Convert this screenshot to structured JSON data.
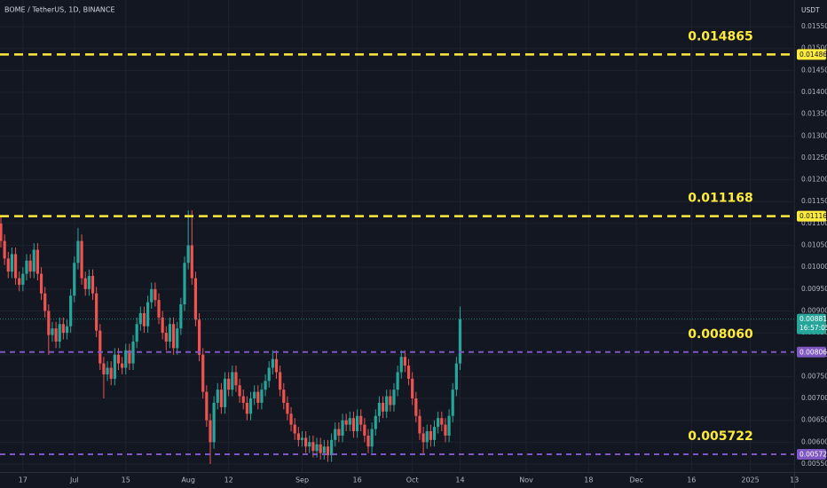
{
  "chart_data": {
    "type": "candlestick",
    "title": "BOME / TetherUS, 1D, BINANCE",
    "y_unit": "USDT",
    "up_color": "#26a69a",
    "down_color": "#ef5350",
    "ylim": [
      0.005317,
      0.01611
    ],
    "yticks": [
      {
        "value": 0.0055,
        "label": "0.005500"
      },
      {
        "value": 0.006,
        "label": "0.006000"
      },
      {
        "value": 0.0065,
        "label": "0.006500"
      },
      {
        "value": 0.007,
        "label": "0.007000"
      },
      {
        "value": 0.0075,
        "label": "0.007500"
      },
      {
        "value": 0.008,
        "label": "0.008000"
      },
      {
        "value": 0.0085,
        "label": "0.008500"
      },
      {
        "value": 0.009,
        "label": "0.009000"
      },
      {
        "value": 0.0095,
        "label": "0.009500"
      },
      {
        "value": 0.01,
        "label": "0.010000"
      },
      {
        "value": 0.0105,
        "label": "0.010500"
      },
      {
        "value": 0.011,
        "label": "0.011000"
      },
      {
        "value": 0.0115,
        "label": "0.011500"
      },
      {
        "value": 0.012,
        "label": "0.012000"
      },
      {
        "value": 0.0125,
        "label": "0.012500"
      },
      {
        "value": 0.013,
        "label": "0.013000"
      },
      {
        "value": 0.0135,
        "label": "0.013500"
      },
      {
        "value": 0.014,
        "label": "0.014000"
      },
      {
        "value": 0.0145,
        "label": "0.014500"
      },
      {
        "value": 0.015,
        "label": "0.015000"
      },
      {
        "value": 0.0155,
        "label": "0.015500"
      }
    ],
    "grid": true,
    "categories": [
      null,
      null,
      null,
      null,
      null,
      null,
      "17",
      null,
      null,
      null,
      null,
      null,
      null,
      null,
      null,
      null,
      null,
      null,
      null,
      null,
      "Jul",
      null,
      null,
      null,
      null,
      null,
      null,
      null,
      null,
      null,
      null,
      null,
      null,
      null,
      "15",
      null,
      null,
      null,
      null,
      null,
      null,
      null,
      null,
      null,
      null,
      null,
      null,
      null,
      null,
      null,
      null,
      "Aug",
      null,
      null,
      null,
      null,
      null,
      null,
      null,
      null,
      null,
      null,
      "12",
      null,
      null,
      null,
      null,
      null,
      null,
      null,
      null,
      null,
      null,
      null,
      null,
      null,
      null,
      null,
      null,
      null,
      null,
      null,
      "Sep",
      null,
      null,
      null,
      null,
      null,
      null,
      null,
      null,
      null,
      null,
      null,
      null,
      null,
      null,
      "16",
      null,
      null,
      null,
      null,
      null,
      null,
      null,
      null,
      null,
      null,
      null,
      null,
      null,
      null,
      "Oct",
      null,
      null,
      null,
      null,
      null,
      null,
      null,
      null,
      null,
      null,
      null,
      null,
      "14"
    ],
    "future_categories": [
      "Nov",
      "18",
      "Dec",
      "16",
      "2025",
      "13"
    ],
    "series": [
      {
        "name": "BOME",
        "ohlc": [
          [
            0.011,
            0.01115,
            0.01045,
            0.0106
          ],
          [
            0.0106,
            0.01075,
            0.01005,
            0.0102
          ],
          [
            0.0102,
            0.01035,
            0.00975,
            0.0099
          ],
          [
            0.0099,
            0.01045,
            0.00975,
            0.0103
          ],
          [
            0.0103,
            0.01045,
            0.0096,
            0.00975
          ],
          [
            0.00975,
            0.0099,
            0.00945,
            0.0096
          ],
          [
            0.0096,
            0.01,
            0.00945,
            0.00985
          ],
          [
            0.00985,
            0.0103,
            0.0097,
            0.01015
          ],
          [
            0.01015,
            0.0103,
            0.00975,
            0.0099
          ],
          [
            0.0099,
            0.01055,
            0.00975,
            0.0104
          ],
          [
            0.0104,
            0.01055,
            0.0097,
            0.00985
          ],
          [
            0.00985,
            0.01,
            0.00925,
            0.0094
          ],
          [
            0.0094,
            0.00955,
            0.00885,
            0.009
          ],
          [
            0.009,
            0.00915,
            0.008,
            0.00845
          ],
          [
            0.00845,
            0.00875,
            0.0083,
            0.0086
          ],
          [
            0.0086,
            0.00875,
            0.00815,
            0.0083
          ],
          [
            0.0083,
            0.00885,
            0.00815,
            0.0087
          ],
          [
            0.0087,
            0.00885,
            0.00835,
            0.0085
          ],
          [
            0.0085,
            0.0088,
            0.00835,
            0.00865
          ],
          [
            0.00865,
            0.0095,
            0.0085,
            0.00935
          ],
          [
            0.00935,
            0.01025,
            0.0092,
            0.0101
          ],
          [
            0.0101,
            0.0109,
            0.00995,
            0.0106
          ],
          [
            0.0106,
            0.01075,
            0.0096,
            0.00975
          ],
          [
            0.00975,
            0.0099,
            0.00935,
            0.0095
          ],
          [
            0.0095,
            0.00995,
            0.00935,
            0.0098
          ],
          [
            0.0098,
            0.00995,
            0.00925,
            0.0094
          ],
          [
            0.0094,
            0.00955,
            0.0084,
            0.00855
          ],
          [
            0.00855,
            0.0087,
            0.00765,
            0.0078
          ],
          [
            0.0078,
            0.00795,
            0.007,
            0.00755
          ],
          [
            0.00755,
            0.00785,
            0.0074,
            0.0077
          ],
          [
            0.0077,
            0.00785,
            0.0073,
            0.00745
          ],
          [
            0.00745,
            0.00815,
            0.0073,
            0.008
          ],
          [
            0.008,
            0.00815,
            0.00765,
            0.0078
          ],
          [
            0.0078,
            0.00795,
            0.00755,
            0.0077
          ],
          [
            0.0077,
            0.00825,
            0.00755,
            0.0081
          ],
          [
            0.0081,
            0.00825,
            0.00765,
            0.0078
          ],
          [
            0.0078,
            0.00845,
            0.00765,
            0.0083
          ],
          [
            0.0083,
            0.00885,
            0.00815,
            0.0087
          ],
          [
            0.0087,
            0.0091,
            0.00855,
            0.00895
          ],
          [
            0.00895,
            0.0091,
            0.0085,
            0.00865
          ],
          [
            0.00865,
            0.00935,
            0.0085,
            0.0092
          ],
          [
            0.0092,
            0.00965,
            0.00905,
            0.0095
          ],
          [
            0.0095,
            0.00965,
            0.0091,
            0.00925
          ],
          [
            0.00925,
            0.0094,
            0.0087,
            0.00885
          ],
          [
            0.00885,
            0.009,
            0.00835,
            0.0085
          ],
          [
            0.0085,
            0.00865,
            0.0081,
            0.0083
          ],
          [
            0.0083,
            0.00885,
            0.00815,
            0.0087
          ],
          [
            0.0087,
            0.00885,
            0.008,
            0.00815
          ],
          [
            0.00815,
            0.00875,
            0.008,
            0.0086
          ],
          [
            0.0086,
            0.0093,
            0.00845,
            0.00915
          ],
          [
            0.00915,
            0.01025,
            0.009,
            0.0101
          ],
          [
            0.0101,
            0.0113,
            0.00995,
            0.0105
          ],
          [
            0.0105,
            0.0113,
            0.0096,
            0.00975
          ],
          [
            0.00975,
            0.0099,
            0.00865,
            0.0088
          ],
          [
            0.0088,
            0.00895,
            0.00785,
            0.008
          ],
          [
            0.008,
            0.00815,
            0.007,
            0.00715
          ],
          [
            0.00715,
            0.0073,
            0.00635,
            0.0065
          ],
          [
            0.0065,
            0.00665,
            0.0055,
            0.006
          ],
          [
            0.006,
            0.00705,
            0.00585,
            0.0069
          ],
          [
            0.0069,
            0.00735,
            0.00675,
            0.0072
          ],
          [
            0.0072,
            0.00735,
            0.00665,
            0.0068
          ],
          [
            0.0068,
            0.0076,
            0.00665,
            0.00745
          ],
          [
            0.00745,
            0.0076,
            0.00705,
            0.0072
          ],
          [
            0.0072,
            0.00775,
            0.00705,
            0.0076
          ],
          [
            0.0076,
            0.00775,
            0.00715,
            0.0073
          ],
          [
            0.0073,
            0.00745,
            0.0069,
            0.00705
          ],
          [
            0.00705,
            0.0072,
            0.00675,
            0.0069
          ],
          [
            0.0069,
            0.00705,
            0.0065,
            0.00665
          ],
          [
            0.00665,
            0.00715,
            0.0065,
            0.007
          ],
          [
            0.007,
            0.0073,
            0.00685,
            0.00715
          ],
          [
            0.00715,
            0.0073,
            0.00675,
            0.0069
          ],
          [
            0.0069,
            0.00735,
            0.00675,
            0.0072
          ],
          [
            0.0072,
            0.00755,
            0.00705,
            0.0074
          ],
          [
            0.0074,
            0.00785,
            0.00725,
            0.0077
          ],
          [
            0.0077,
            0.0081,
            0.00755,
            0.0079
          ],
          [
            0.0079,
            0.0081,
            0.00745,
            0.0076
          ],
          [
            0.0076,
            0.00775,
            0.00705,
            0.0072
          ],
          [
            0.0072,
            0.00735,
            0.00675,
            0.0069
          ],
          [
            0.0069,
            0.00705,
            0.0065,
            0.00665
          ],
          [
            0.00665,
            0.0068,
            0.00625,
            0.0064
          ],
          [
            0.0064,
            0.00655,
            0.00605,
            0.0062
          ],
          [
            0.0062,
            0.00635,
            0.0059,
            0.00605
          ],
          [
            0.00605,
            0.00625,
            0.0059,
            0.0061
          ],
          [
            0.0061,
            0.00625,
            0.00575,
            0.0059
          ],
          [
            0.0059,
            0.00615,
            0.00575,
            0.006
          ],
          [
            0.006,
            0.00615,
            0.00565,
            0.0058
          ],
          [
            0.0058,
            0.0061,
            0.00565,
            0.00595
          ],
          [
            0.00595,
            0.0061,
            0.0056,
            0.00575
          ],
          [
            0.00575,
            0.00605,
            0.0056,
            0.0059
          ],
          [
            0.0059,
            0.00605,
            0.00555,
            0.0057
          ],
          [
            0.0057,
            0.0062,
            0.00555,
            0.00605
          ],
          [
            0.00605,
            0.00645,
            0.0059,
            0.0063
          ],
          [
            0.0063,
            0.00645,
            0.006,
            0.00615
          ],
          [
            0.00615,
            0.00665,
            0.006,
            0.0065
          ],
          [
            0.0065,
            0.00665,
            0.00625,
            0.0064
          ],
          [
            0.0064,
            0.0067,
            0.00625,
            0.00655
          ],
          [
            0.00655,
            0.0067,
            0.0061,
            0.00625
          ],
          [
            0.00625,
            0.00675,
            0.0061,
            0.0066
          ],
          [
            0.0066,
            0.00675,
            0.00625,
            0.0064
          ],
          [
            0.0064,
            0.00655,
            0.006,
            0.00615
          ],
          [
            0.00615,
            0.0063,
            0.00575,
            0.0059
          ],
          [
            0.0059,
            0.00645,
            0.00575,
            0.0063
          ],
          [
            0.0063,
            0.00675,
            0.00615,
            0.0066
          ],
          [
            0.0066,
            0.00705,
            0.00645,
            0.0069
          ],
          [
            0.0069,
            0.00705,
            0.00655,
            0.0067
          ],
          [
            0.0067,
            0.0072,
            0.00655,
            0.00705
          ],
          [
            0.00705,
            0.0072,
            0.0067,
            0.00685
          ],
          [
            0.00685,
            0.00735,
            0.0067,
            0.0072
          ],
          [
            0.0072,
            0.00775,
            0.00705,
            0.0076
          ],
          [
            0.0076,
            0.0081,
            0.00745,
            0.00795
          ],
          [
            0.00795,
            0.0081,
            0.0076,
            0.00775
          ],
          [
            0.00775,
            0.0079,
            0.0073,
            0.00745
          ],
          [
            0.00745,
            0.0076,
            0.00685,
            0.007
          ],
          [
            0.007,
            0.00715,
            0.00645,
            0.0066
          ],
          [
            0.0066,
            0.00675,
            0.00605,
            0.0062
          ],
          [
            0.0062,
            0.00635,
            0.0057,
            0.006
          ],
          [
            0.006,
            0.0064,
            0.00585,
            0.00625
          ],
          [
            0.00625,
            0.0064,
            0.0059,
            0.00605
          ],
          [
            0.00605,
            0.0065,
            0.0059,
            0.00635
          ],
          [
            0.00635,
            0.0067,
            0.0062,
            0.00655
          ],
          [
            0.00655,
            0.0067,
            0.00625,
            0.0064
          ],
          [
            0.0064,
            0.00655,
            0.006,
            0.00615
          ],
          [
            0.00615,
            0.00675,
            0.006,
            0.0066
          ],
          [
            0.0066,
            0.00735,
            0.00645,
            0.0072
          ],
          [
            0.0072,
            0.00795,
            0.00705,
            0.0078
          ],
          [
            0.0078,
            0.0091,
            0.00765,
            0.00881
          ]
        ]
      }
    ],
    "levels": [
      {
        "value": 0.014865,
        "label": "0.014865",
        "color": "#ffeb3b"
      },
      {
        "value": 0.011168,
        "label": "0.011168",
        "color": "#ffeb3b"
      },
      {
        "value": 0.00806,
        "label": "0.008060",
        "color": "#7e57c2"
      },
      {
        "value": 0.005722,
        "label": "0.005722",
        "color": "#7e57c2"
      }
    ],
    "last_price": {
      "value": 0.008814,
      "label": "0.008814",
      "countdown": "16:57:05",
      "color": "#26a69a"
    }
  }
}
